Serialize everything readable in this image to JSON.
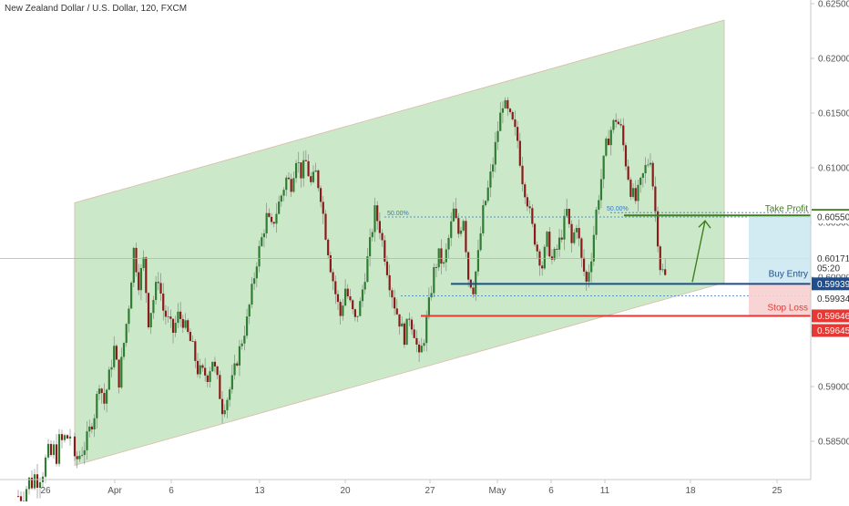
{
  "symbol_title": "New Zealand Dollar / U.S. Dollar, 120, FXCM",
  "colors": {
    "channel_fill": "#b9e2b5",
    "up_candle": "#2e7d32",
    "down_candle": "#8b1a1a",
    "take_profit": "#3f7f1f",
    "buy_entry": "#1f4e8c",
    "stop_loss": "#e53935",
    "fib_line": "#3a78c2"
  },
  "chart_data": {
    "type": "candlestick",
    "title": "New Zealand Dollar / U.S. Dollar, 120, FXCM",
    "y_ticks": [
      "0.62500",
      "0.62000",
      "0.61500",
      "0.61000",
      "0.60500",
      "0.60000",
      "0.59500",
      "0.59000",
      "0.58500"
    ],
    "ylim": [
      0.5825,
      0.625
    ],
    "x_ticks": [
      "26",
      "Apr",
      "6",
      "13",
      "20",
      "27",
      "May",
      "6",
      "11",
      "18",
      "25"
    ],
    "grid": false,
    "close_path": [
      [
        0,
        0.583
      ],
      [
        2,
        0.5845
      ],
      [
        4,
        0.5875
      ],
      [
        5,
        0.5905
      ],
      [
        6,
        0.5885
      ],
      [
        8,
        0.5935
      ],
      [
        9,
        0.5905
      ],
      [
        11,
        0.5975
      ],
      [
        12,
        0.6025
      ],
      [
        13,
        0.5995
      ],
      [
        14,
        0.6015
      ],
      [
        15,
        0.596
      ],
      [
        17,
        0.6
      ],
      [
        18,
        0.597
      ],
      [
        20,
        0.595
      ],
      [
        21,
        0.5965
      ],
      [
        22,
        0.596
      ],
      [
        24,
        0.5935
      ],
      [
        25,
        0.5915
      ],
      [
        27,
        0.591
      ],
      [
        28,
        0.5925
      ],
      [
        29,
        0.5905
      ],
      [
        30,
        0.588
      ],
      [
        31,
        0.589
      ],
      [
        32,
        0.5905
      ],
      [
        33,
        0.5925
      ],
      [
        35,
        0.596
      ],
      [
        37,
        0.6015
      ],
      [
        39,
        0.6055
      ],
      [
        40,
        0.6045
      ],
      [
        42,
        0.6075
      ],
      [
        43,
        0.609
      ],
      [
        44,
        0.6085
      ],
      [
        45,
        0.611
      ],
      [
        46,
        0.6095
      ],
      [
        47,
        0.6105
      ],
      [
        48,
        0.6085
      ],
      [
        49,
        0.6095
      ],
      [
        50,
        0.6075
      ],
      [
        51,
        0.604
      ],
      [
        52,
        0.601
      ],
      [
        53,
        0.5985
      ],
      [
        54,
        0.5965
      ],
      [
        55,
        0.599
      ],
      [
        56,
        0.5975
      ],
      [
        57,
        0.596
      ],
      [
        58,
        0.5975
      ],
      [
        60,
        0.603
      ],
      [
        61,
        0.606
      ],
      [
        62,
        0.6045
      ],
      [
        63,
        0.602
      ],
      [
        64,
        0.5995
      ],
      [
        65,
        0.5975
      ],
      [
        66,
        0.596
      ],
      [
        67,
        0.5945
      ],
      [
        68,
        0.5965
      ],
      [
        69,
        0.595
      ],
      [
        70,
        0.5925
      ],
      [
        71,
        0.5945
      ],
      [
        72,
        0.5975
      ],
      [
        73,
        0.6005
      ],
      [
        74,
        0.602
      ],
      [
        75,
        0.601
      ],
      [
        76,
        0.6035
      ],
      [
        77,
        0.606
      ],
      [
        78,
        0.604
      ],
      [
        79,
        0.6055
      ],
      [
        80,
        0.6
      ],
      [
        81,
        0.599
      ],
      [
        82,
        0.602
      ],
      [
        83,
        0.606
      ],
      [
        84,
        0.608
      ],
      [
        85,
        0.6105
      ],
      [
        86,
        0.6135
      ],
      [
        87,
        0.616
      ],
      [
        88,
        0.615
      ],
      [
        89,
        0.614
      ],
      [
        90,
        0.6125
      ],
      [
        91,
        0.609
      ],
      [
        92,
        0.607
      ],
      [
        93,
        0.6045
      ],
      [
        94,
        0.6025
      ],
      [
        95,
        0.601
      ],
      [
        96,
        0.6035
      ],
      [
        97,
        0.6015
      ],
      [
        98,
        0.6025
      ],
      [
        99,
        0.604
      ],
      [
        100,
        0.606
      ],
      [
        101,
        0.603
      ],
      [
        102,
        0.605
      ],
      [
        103,
        0.6015
      ],
      [
        104,
        0.5995
      ],
      [
        105,
        0.602
      ],
      [
        106,
        0.606
      ],
      [
        107,
        0.609
      ],
      [
        108,
        0.612
      ],
      [
        109,
        0.6135
      ],
      [
        110,
        0.6145
      ],
      [
        111,
        0.6135
      ],
      [
        112,
        0.6105
      ],
      [
        113,
        0.608
      ],
      [
        114,
        0.607
      ],
      [
        115,
        0.6085
      ],
      [
        116,
        0.61
      ],
      [
        117,
        0.611
      ],
      [
        118,
        0.606
      ],
      [
        119,
        0.601
      ],
      [
        120,
        0.6
      ]
    ],
    "channel": {
      "upper": [
        [
          0,
          0.6068
        ],
        [
          132,
          0.6235
        ]
      ],
      "lower": [
        [
          0,
          0.5828
        ],
        [
          132,
          0.5995
        ]
      ]
    },
    "levels": [
      {
        "id": "take_profit",
        "label": "Take Profit",
        "value": "0.60565",
        "price": 0.60565,
        "color": "#3f7f1f"
      },
      {
        "id": "fib50",
        "label": "50.00%",
        "value": "0.60550",
        "price": 0.6055,
        "color": "#3a78c2"
      },
      {
        "id": "current",
        "label": "",
        "value": "0.60171",
        "price": 0.60171,
        "color": "#2f2f2f"
      },
      {
        "id": "countdown",
        "label": "",
        "value": "05:20",
        "price": 0.60085,
        "color": "#2f2f2f"
      },
      {
        "id": "buy_entry",
        "label": "Buy Entry",
        "value": "0.59939",
        "price": 0.59939,
        "color": "#1f4e8c"
      },
      {
        "id": "fib_lower",
        "label": "",
        "value": "0.59934",
        "price": 0.59934,
        "color": "#c8c8c8"
      },
      {
        "id": "stop_loss",
        "label": "Stop Loss",
        "value": "0.59646",
        "price": 0.59646,
        "color": "#e53935"
      },
      {
        "id": "stop_loss_2",
        "label": "",
        "value": "0.59645",
        "price": 0.59645,
        "color": "#e53935"
      }
    ],
    "annotations": [
      "50.00%",
      "50.00%",
      "Take Profit",
      "Buy Entry",
      "Stop Loss"
    ]
  }
}
